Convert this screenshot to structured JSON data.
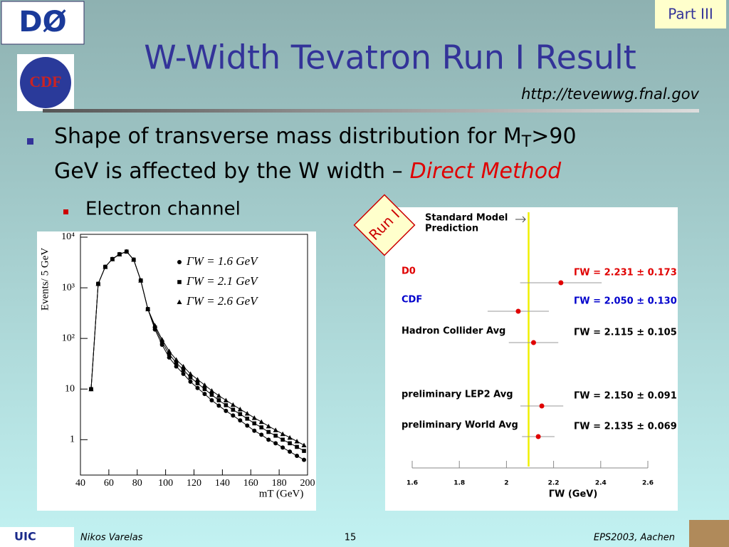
{
  "slide": {
    "part": "Part III",
    "title": "W-Width Tevatron Run I Result",
    "url": "http://tevewwg.fnal.gov",
    "logos": [
      "DØ",
      "CDF",
      "UIC"
    ],
    "bullet": [
      "Shape of transverse mass distribution for M",
      "T",
      ">90",
      "GeV is affected by the W width –",
      "Direct Method"
    ],
    "sub_bullet": "Electron channel",
    "stamp": "Run I",
    "footer": {
      "author": "Nikos Varelas",
      "page": "15",
      "event": "EPS2003, Aachen"
    }
  },
  "chart_data": [
    {
      "type": "line",
      "ylabel": "Events/ 5 GeV",
      "xlabel": "mT (GeV)",
      "log_y": true,
      "x": [
        47.5,
        52.5,
        57.5,
        62.5,
        67.5,
        72.5,
        77.5,
        82.5,
        87.5,
        92.5,
        97.5,
        102.5,
        107.5,
        112.5,
        117.5,
        122.5,
        127.5,
        132.5,
        137.5,
        142.5,
        147.5,
        152.5,
        157.5,
        162.5,
        167.5,
        172.5,
        177.5,
        182.5,
        187.5,
        192.5,
        197.5
      ],
      "series": [
        {
          "name": "ΓW = 1.6 GeV",
          "marker": "circle",
          "color": "#000000",
          "values": [
            10,
            1200,
            2600,
            3700,
            4600,
            5200,
            3600,
            1400,
            380,
            150,
            75,
            42,
            28,
            20,
            14,
            10.5,
            8,
            6,
            4.7,
            3.7,
            3,
            2.4,
            1.9,
            1.5,
            1.25,
            1,
            0.85,
            0.7,
            0.58,
            0.48,
            0.4
          ]
        },
        {
          "name": "ΓW = 2.1 GeV",
          "marker": "square",
          "color": "#000000",
          "values": [
            10,
            1200,
            2600,
            3700,
            4600,
            5200,
            3600,
            1400,
            380,
            165,
            85,
            49,
            33,
            24,
            17,
            13,
            10,
            7.7,
            6,
            4.8,
            3.9,
            3.2,
            2.6,
            2.1,
            1.75,
            1.42,
            1.2,
            1,
            0.85,
            0.72,
            0.6
          ]
        },
        {
          "name": "ΓW = 2.6 GeV",
          "marker": "triangle",
          "color": "#000000",
          "values": [
            10,
            1200,
            2600,
            3700,
            4600,
            5200,
            3600,
            1400,
            380,
            180,
            95,
            56,
            38,
            28,
            20,
            15.5,
            12,
            9.3,
            7.4,
            6,
            4.9,
            4,
            3.3,
            2.7,
            2.25,
            1.85,
            1.55,
            1.3,
            1.1,
            0.93,
            0.78
          ]
        }
      ],
      "xlim": [
        40,
        200
      ],
      "xticks": [
        40,
        60,
        80,
        100,
        120,
        140,
        160,
        180,
        200
      ],
      "ylim": [
        0.2,
        10000
      ],
      "yticks": [
        {
          "value": 10000,
          "label": "10⁴"
        },
        {
          "value": 1000,
          "label": "10³"
        },
        {
          "value": 100,
          "label": "10²"
        },
        10,
        1
      ]
    },
    {
      "type": "errorbar",
      "sm_label": [
        "Standard Model",
        "Prediction"
      ],
      "sm_value": 2.094,
      "sm_color": "#f0f000",
      "categories": [
        "D0",
        "CDF",
        "Hadron Collider Avg",
        "preliminary LEP2 Avg",
        "preliminary World Avg"
      ],
      "label_colors": [
        "#e00000",
        "#0000cc",
        "#000000",
        "#000000",
        "#000000"
      ],
      "values": [
        2.231,
        2.05,
        2.115,
        2.15,
        2.135
      ],
      "errors": [
        0.173,
        0.13,
        0.105,
        0.091,
        0.069
      ],
      "value_labels": [
        "ΓW = 2.231 ± 0.173",
        "ΓW = 2.050 ± 0.130",
        "ΓW = 2.115 ± 0.105",
        "ΓW = 2.150 ± 0.091",
        "ΓW = 2.135 ± 0.069"
      ],
      "color": "#e00000",
      "xlabel": "ΓW (GeV)",
      "xlim": [
        1.6,
        2.6
      ],
      "xticks": [
        1.6,
        1.8,
        2,
        2.2,
        2.4,
        2.6
      ]
    }
  ]
}
